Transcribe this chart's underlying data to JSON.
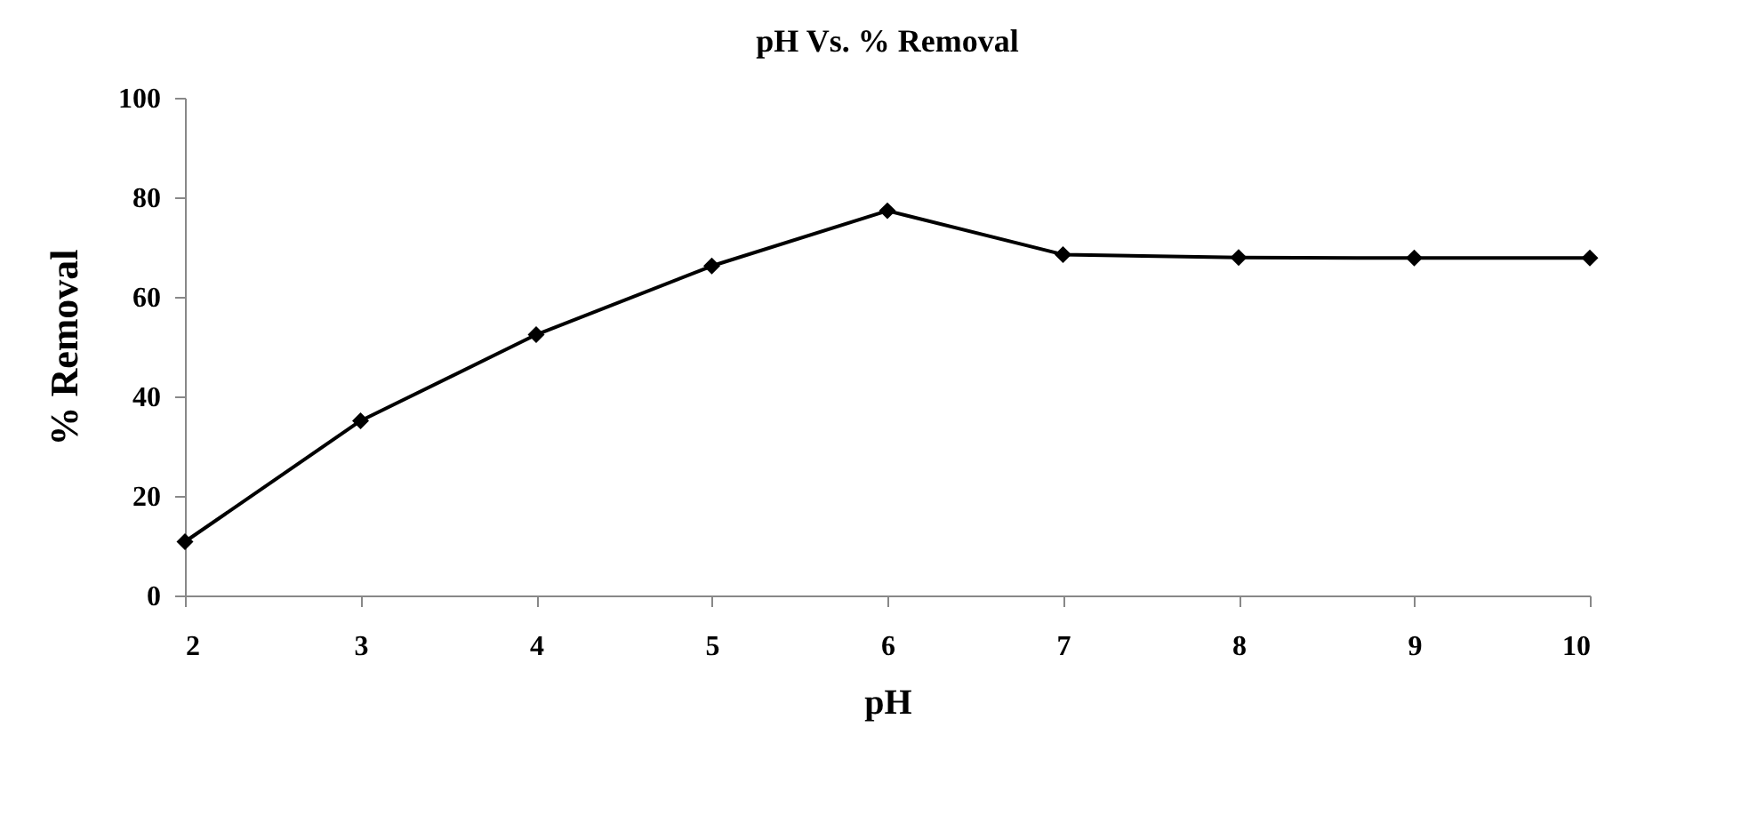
{
  "chart_data": {
    "type": "line",
    "title": "pH Vs. % Removal",
    "xlabel": "pH",
    "ylabel": "% Removal",
    "x": [
      2,
      3,
      4,
      5,
      6,
      7,
      8,
      9,
      10
    ],
    "series": [
      {
        "color": "#000000",
        "values": [
          10.8,
          35.1,
          52.4,
          66.2,
          77.3,
          68.5,
          67.9,
          67.8,
          67.8
        ]
      }
    ],
    "xlim": [
      2,
      10
    ],
    "xticks": [
      2,
      3,
      4,
      5,
      6,
      7,
      8,
      9,
      10
    ],
    "ylim": [
      0,
      100
    ],
    "yticks": [
      0,
      20,
      40,
      60,
      80,
      100
    ],
    "grid": false,
    "marker": "diamond",
    "line_style": "solid"
  }
}
